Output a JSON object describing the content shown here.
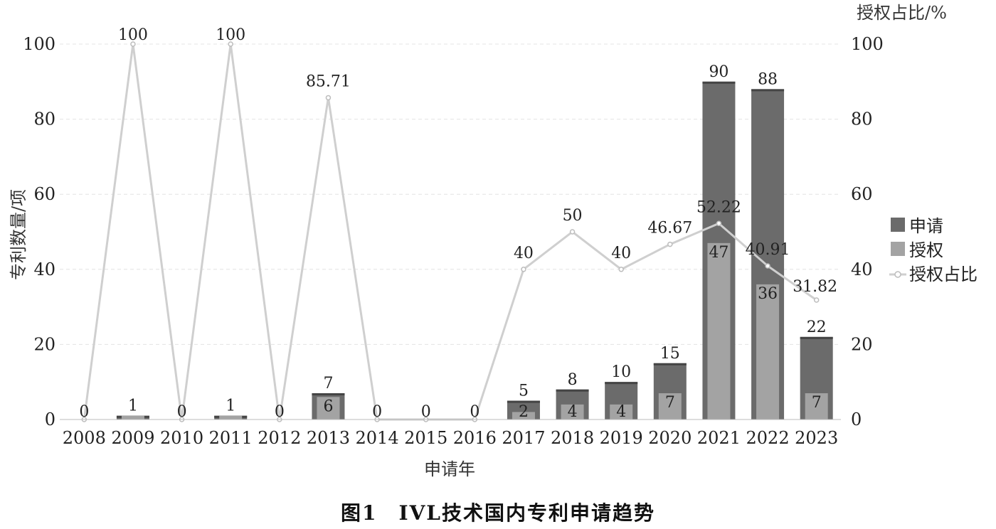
{
  "chart_data": {
    "type": "bar",
    "categories": [
      "2008",
      "2009",
      "2010",
      "2011",
      "2012",
      "2013",
      "2014",
      "2015",
      "2016",
      "2017",
      "2018",
      "2019",
      "2020",
      "2021",
      "2022",
      "2023"
    ],
    "series": [
      {
        "name": "申请",
        "type": "bar",
        "values": [
          0,
          1,
          0,
          1,
          0,
          7,
          0,
          0,
          0,
          5,
          8,
          10,
          15,
          90,
          88,
          22
        ],
        "color": "#6b6b6b"
      },
      {
        "name": "授权",
        "type": "bar",
        "values": [
          0,
          1,
          0,
          1,
          0,
          6,
          0,
          0,
          0,
          2,
          4,
          4,
          7,
          47,
          36,
          7
        ],
        "color": "#a3a3a3"
      },
      {
        "name": "授权占比",
        "type": "line",
        "axis": "right",
        "values": [
          0,
          100,
          0,
          100,
          0,
          85.71,
          0,
          0,
          0,
          40,
          50,
          40,
          46.67,
          52.22,
          40.91,
          31.82
        ],
        "color": "#cfcfcf"
      }
    ],
    "xlabel": "申请年",
    "ylabel": "专利数量/项",
    "y2label": "授权占比/%",
    "ylim": [
      0,
      100
    ],
    "y2lim": [
      0,
      100
    ],
    "yticks": [
      0,
      20,
      40,
      60,
      80,
      100
    ],
    "y2ticks": [
      0,
      20,
      40,
      60,
      80,
      100
    ],
    "grid": true,
    "legend": "right",
    "caption": "图1　IVL技术国内专利申请趋势"
  }
}
